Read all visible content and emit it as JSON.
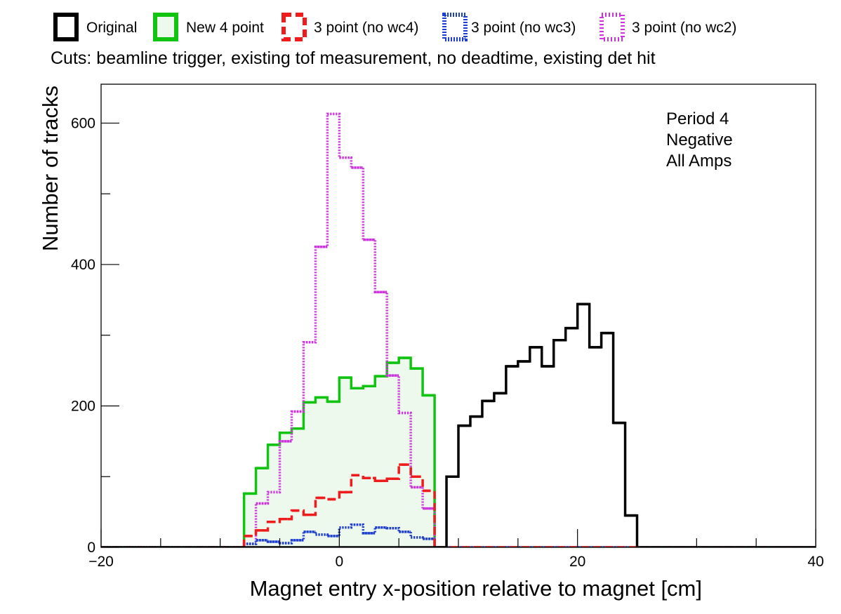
{
  "chart_data": {
    "type": "histogram",
    "cuts_text": "Cuts: beamline trigger, existing tof measurement, no deadtime, existing det hit",
    "annotation": [
      "Period 4",
      "Negative",
      "All Amps"
    ],
    "xlabel": "Magnet entry x-position relative to magnet [cm]",
    "ylabel": "Number of tracks",
    "xlim": [
      -20,
      40
    ],
    "ylim": [
      0,
      655
    ],
    "x_ticks": [
      -20,
      0,
      20,
      40
    ],
    "x_tick_labels": [
      "−20",
      "0",
      "20",
      "40"
    ],
    "y_ticks": [
      0,
      200,
      400,
      600
    ],
    "y_tick_labels": [
      "0",
      "200",
      "400",
      "600"
    ],
    "bin_width": 1,
    "legend_position": "top, above plot",
    "series": [
      {
        "name": "Original",
        "color": "#000000",
        "line_style": "solid",
        "filled": false,
        "bin_starts": [
          9,
          10,
          11,
          12,
          13,
          14,
          15,
          16,
          17,
          18,
          19,
          20,
          21,
          22,
          23,
          24
        ],
        "values": [
          100,
          172,
          185,
          207,
          218,
          256,
          263,
          283,
          256,
          293,
          310,
          344,
          283,
          303,
          176,
          45
        ]
      },
      {
        "name": "New 4 point",
        "color": "#11c411",
        "fill_color": "#eef9ee",
        "line_style": "solid",
        "filled": true,
        "bin_starts": [
          -8,
          -7,
          -6,
          -5,
          -4,
          -3,
          -2,
          -1,
          0,
          1,
          2,
          3,
          4,
          5,
          6,
          7
        ],
        "values": [
          76,
          112,
          145,
          162,
          168,
          205,
          212,
          206,
          240,
          225,
          228,
          242,
          261,
          268,
          253,
          215
        ]
      },
      {
        "name": "3 point (no wc4)",
        "color": "#ee1c1c",
        "line_style": "dashed",
        "filled": false,
        "bin_starts": [
          -8,
          -7,
          -6,
          -5,
          -4,
          -3,
          -2,
          -1,
          0,
          1,
          2,
          3,
          4,
          5,
          6,
          7
        ],
        "values": [
          16,
          24,
          36,
          40,
          52,
          46,
          70,
          68,
          78,
          102,
          98,
          94,
          97,
          117,
          100,
          80
        ]
      },
      {
        "name": "3 point (no wc3)",
        "color": "#1d3fcf",
        "line_style": "dotted",
        "filled": false,
        "bin_starts": [
          -8,
          -7,
          -6,
          -5,
          -4,
          -3,
          -2,
          -1,
          0,
          1,
          2,
          3,
          4,
          5,
          6,
          7
        ],
        "values": [
          5,
          10,
          8,
          6,
          10,
          22,
          18,
          16,
          28,
          32,
          20,
          28,
          27,
          22,
          14,
          12
        ]
      },
      {
        "name": "3 point (no wc2)",
        "color": "#cc33dd",
        "line_style": "dotted",
        "filled": false,
        "bin_starts": [
          -7,
          -6,
          -5,
          -4,
          -3,
          -2,
          -1,
          0,
          1,
          2,
          3,
          4,
          5,
          6,
          7
        ],
        "values": [
          62,
          78,
          150,
          192,
          290,
          425,
          613,
          551,
          537,
          435,
          361,
          243,
          190,
          85,
          55
        ]
      }
    ]
  }
}
